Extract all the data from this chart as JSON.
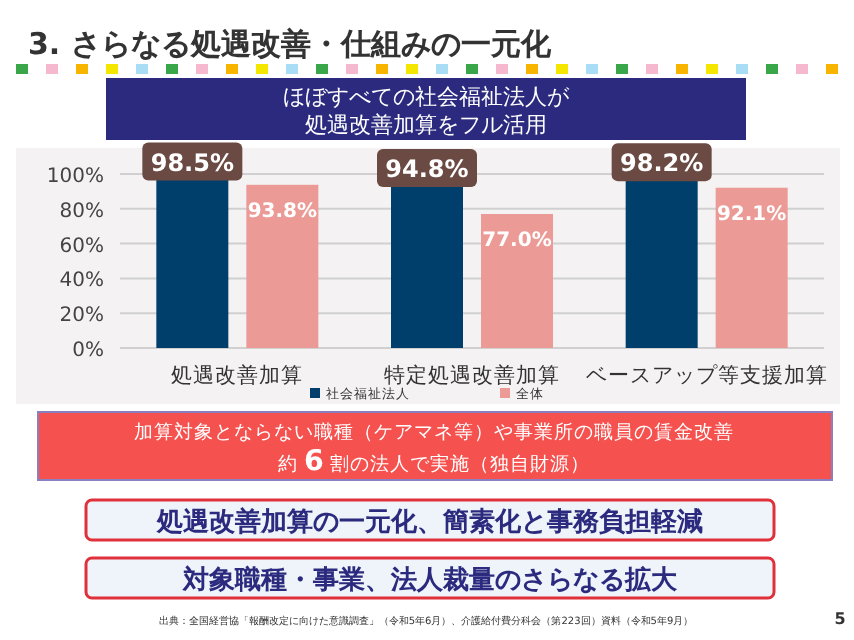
{
  "chart_data": {
    "type": "bar",
    "title": "3. さらなる処遇改善・仕組みの一元化",
    "categories": [
      "処遇改善加算",
      "特定処遇改善加算",
      "ベースアップ等支援加算"
    ],
    "series": [
      {
        "name": "社会福祉法人",
        "color": "#003f6b",
        "values": [
          98.5,
          94.8,
          98.2
        ],
        "value_labels": [
          "98.5%",
          "94.8%",
          "98.2%"
        ]
      },
      {
        "name": "全体",
        "color": "#eb9a96",
        "values": [
          93.8,
          77.0,
          92.1
        ],
        "value_labels": [
          "93.8%",
          "77.0%",
          "92.1%"
        ]
      }
    ],
    "ylim": [
      0,
      100
    ],
    "yticks": [
      {
        "value": 0,
        "label": "0%"
      },
      {
        "value": 20,
        "label": "20%"
      },
      {
        "value": 40,
        "label": "40%"
      },
      {
        "value": 60,
        "label": "60%"
      },
      {
        "value": 80,
        "label": "80%"
      },
      {
        "value": 100,
        "label": "100%"
      }
    ],
    "grid": "y",
    "legend": "bottom",
    "annotations": [
      "ほぼすべての社会福祉法人が",
      "処遇改善加算をフル活用",
      "加算対象とならない職種（ケアマネ等）や事業所の職員の賃金改善",
      "約 **6** 割の法人で実施（独自財源）",
      "処遇改善加算の一元化、簡素化と事務負担軽減",
      "対象職種・事業、法人裁量のさらなる拡大",
      "出典：全国経営協「報酬改定に向けた意識調査」（令和5年6月）、介護給付費分科会（第223回）資料（令和5年9月）",
      "5"
    ]
  }
}
